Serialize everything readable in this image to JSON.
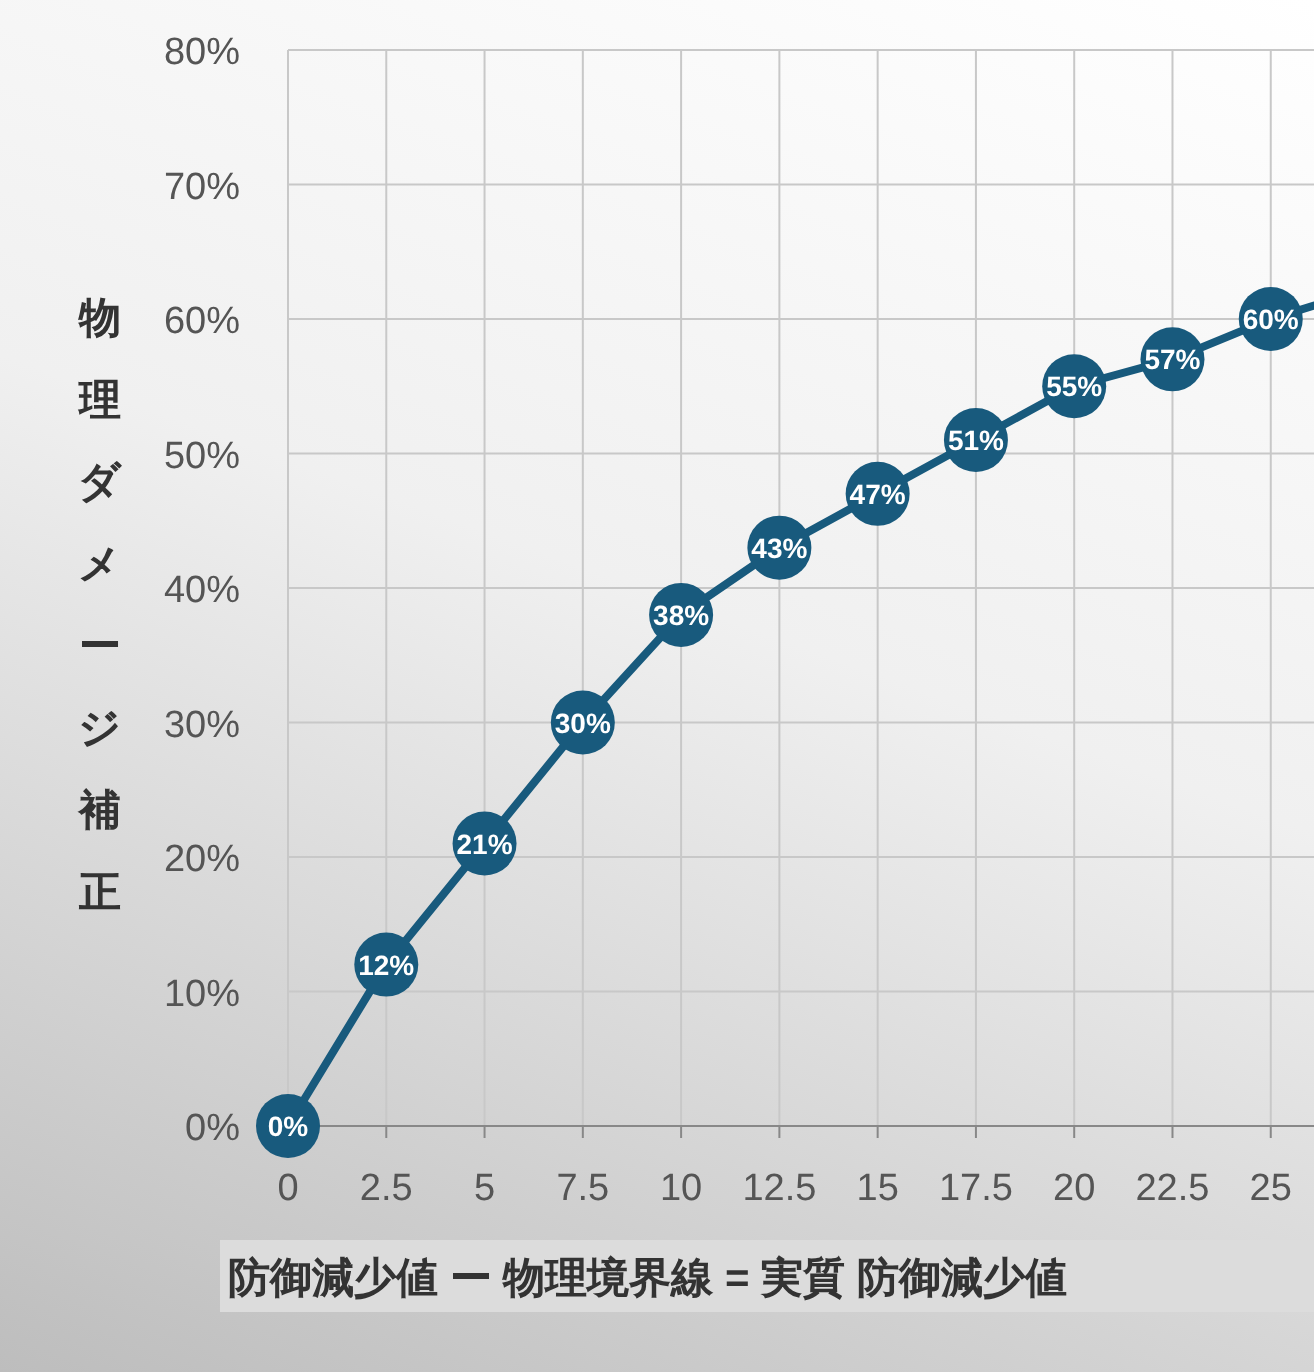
{
  "chart_data": {
    "type": "line",
    "xlabel": "防御減少値 ー 物理境界線 = 実質 防御減少値",
    "ylabel": "物理ダメージ補正",
    "x": [
      0,
      2.5,
      5,
      7.5,
      10,
      12.5,
      15,
      17.5,
      20,
      22.5,
      25,
      26.1
    ],
    "series": [
      {
        "color": "#185a7d",
        "values": [
          0,
          12,
          21,
          30,
          38,
          43,
          47,
          51,
          55,
          57,
          60,
          61
        ],
        "value_labels": [
          "0%",
          "12%",
          "21%",
          "30%",
          "38%",
          "43%",
          "47%",
          "51%",
          "55%",
          "57%",
          "60%",
          null
        ]
      }
    ],
    "xlim": [
      0,
      26.1
    ],
    "xticks": [
      0,
      2.5,
      5,
      7.5,
      10,
      12.5,
      15,
      17.5,
      20,
      22.5,
      25
    ],
    "ylim": [
      0,
      80
    ],
    "yticks": [
      {
        "value": 0,
        "label": "0%"
      },
      {
        "value": 10,
        "label": "10%"
      },
      {
        "value": 20,
        "label": "20%"
      },
      {
        "value": 30,
        "label": "30%"
      },
      {
        "value": 40,
        "label": "40%"
      },
      {
        "value": 50,
        "label": "50%"
      },
      {
        "value": 60,
        "label": "60%"
      },
      {
        "value": 70,
        "label": "70%"
      },
      {
        "value": 80,
        "label": "80%"
      }
    ],
    "grid": true,
    "marker": "circle",
    "line_style": "solid"
  }
}
